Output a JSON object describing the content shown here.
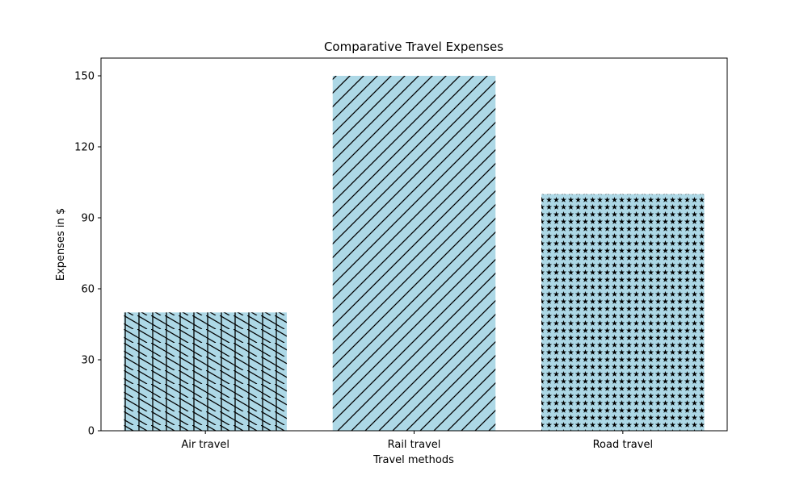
{
  "chart_data": {
    "type": "bar",
    "title": "Comparative Travel Expenses",
    "xlabel": "Travel methods",
    "ylabel": "Expenses in $",
    "categories": [
      "Air travel",
      "Rail travel",
      "Road travel"
    ],
    "values": [
      50,
      150,
      100
    ],
    "ylim": [
      0,
      157.5
    ],
    "yticks": [
      0,
      30,
      60,
      90,
      120,
      150
    ],
    "bar_color": "#add8e6",
    "hatch_color": "#000000",
    "hatches": [
      "crossed-diagonal-vertical",
      "forward-diagonal",
      "stars"
    ],
    "grid": false,
    "legend": "none"
  }
}
